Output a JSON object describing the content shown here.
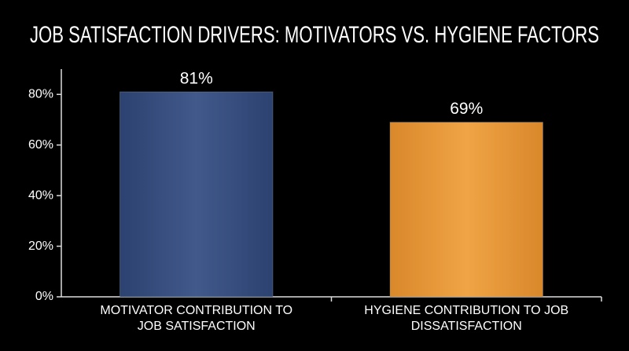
{
  "chart_data": {
    "type": "bar",
    "title": "JOB SATISFACTION DRIVERS: MOTIVATORS VS. HYGIENE FACTORS",
    "categories": [
      "MOTIVATOR CONTRIBUTION TO JOB SATISFACTION",
      "HYGIENE CONTRIBUTION TO JOB DISSATISFACTION"
    ],
    "values": [
      81,
      69
    ],
    "value_labels": [
      "81%",
      "69%"
    ],
    "colors": [
      "#3b5585",
      "#e79b38"
    ],
    "ylim": [
      0,
      90
    ],
    "yticks": [
      {
        "value": 0,
        "label": "0%"
      },
      {
        "value": 20,
        "label": "20%"
      },
      {
        "value": 40,
        "label": "40%"
      },
      {
        "value": 60,
        "label": "60%"
      },
      {
        "value": 80,
        "label": "80%"
      }
    ]
  }
}
